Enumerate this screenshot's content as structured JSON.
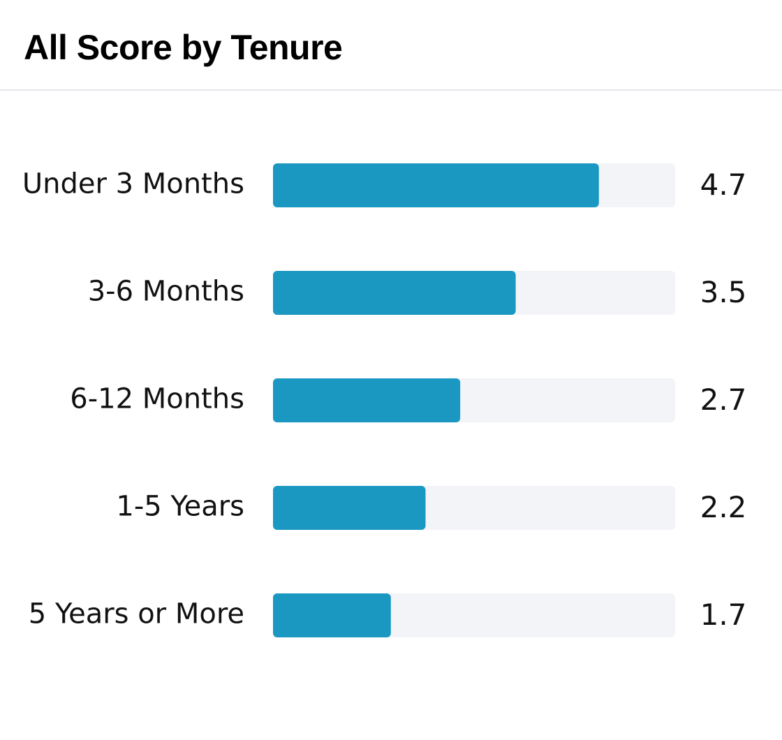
{
  "chart_data": {
    "type": "bar",
    "orientation": "horizontal",
    "title": "All Score by Tenure",
    "categories": [
      "Under 3 Months",
      "3-6 Months",
      "6-12 Months",
      "1-5 Years",
      "5 Years or More"
    ],
    "values": [
      4.7,
      3.5,
      2.7,
      2.2,
      1.7
    ],
    "value_labels": [
      "4.7",
      "3.5",
      "2.7",
      "2.2",
      "1.7"
    ],
    "xlim": [
      0,
      5.8
    ],
    "grid": false,
    "legend": "none",
    "colors": {
      "bar": "#1a98c2",
      "track": "#f3f4f8"
    }
  }
}
